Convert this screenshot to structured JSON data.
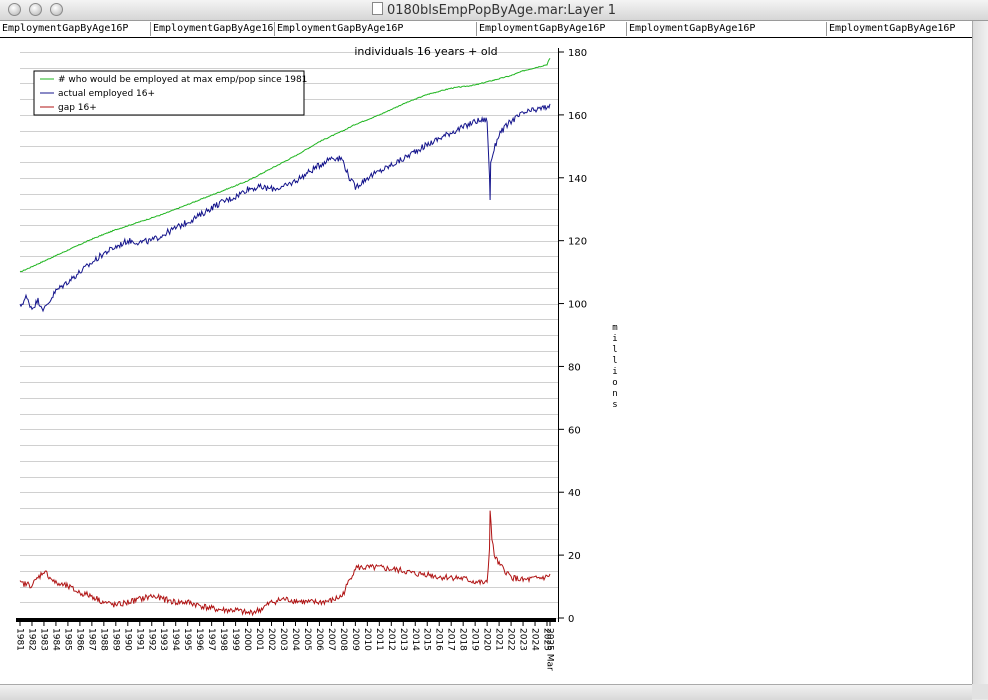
{
  "window": {
    "title": "0180blsEmpPopByAge.mar:Layer 1"
  },
  "headers": [
    "EmploymentGapByAge16P",
    "EmploymentGapByAge16",
    "EmploymentGapByAge16P",
    "EmploymentGapByAge16P",
    "EmploymentGapByAge16P",
    "EmploymentGapByAge16P"
  ],
  "chart_data": {
    "type": "line",
    "title": "individuals 16 years + old",
    "ylabel": "millions",
    "ylim": [
      0,
      180
    ],
    "yticks": [
      0,
      20,
      40,
      60,
      80,
      100,
      120,
      140,
      160,
      180
    ],
    "y_axis_side": "right",
    "grid": true,
    "legend_position": "top-left",
    "x_range": [
      1981.0,
      2025.25
    ],
    "xticks": [
      "1981",
      "1982",
      "1983",
      "1984",
      "1985",
      "1986",
      "1987",
      "1988",
      "1989",
      "1990",
      "1991",
      "1992",
      "1993",
      "1994",
      "1995",
      "1996",
      "1997",
      "1998",
      "1999",
      "2000",
      "2001",
      "2002",
      "2003",
      "2004",
      "2005",
      "2006",
      "2007",
      "2008",
      "2009",
      "2010",
      "2011",
      "2012",
      "2013",
      "2014",
      "2015",
      "2016",
      "2017",
      "2018",
      "2019",
      "2020",
      "2021",
      "2022",
      "2023",
      "2024",
      "2025",
      "2025 Mar"
    ],
    "series": [
      {
        "name": "# who would be employed at max emp/pop since 1981",
        "color": "#1fb51f",
        "x": [
          1981,
          1983,
          1985,
          1987,
          1989,
          1991,
          1993,
          1995,
          1997,
          1999,
          2000,
          2002,
          2004,
          2006,
          2008,
          2009,
          2011,
          2013,
          2015,
          2017,
          2019,
          2020,
          2021,
          2022,
          2023,
          2024,
          2025,
          2025.1,
          2025.25
        ],
        "y": [
          110,
          113.5,
          117,
          120.5,
          123.5,
          126,
          128.5,
          131.5,
          134.5,
          137.5,
          139,
          143,
          147,
          151.5,
          155,
          157,
          160,
          163.5,
          166.5,
          168.5,
          169.5,
          170.5,
          171.5,
          172.5,
          174,
          175,
          176,
          177,
          178
        ]
      },
      {
        "name": "actual employed 16+",
        "color": "#14148c",
        "x": [
          1981,
          1981.5,
          1982,
          1982.5,
          1983,
          1983.5,
          1984,
          1985,
          1986,
          1987,
          1988,
          1989,
          1990,
          1991,
          1992,
          1993,
          1994,
          1995,
          1996,
          1997,
          1998,
          1999,
          2000,
          2001,
          2002,
          2003,
          2004,
          2005,
          2006,
          2007,
          2007.9,
          2008.5,
          2009,
          2009.5,
          2010,
          2011,
          2012,
          2013,
          2014,
          2015,
          2016,
          2017,
          2018,
          2019,
          2020,
          2020.2,
          2020.25,
          2020.3,
          2020.5,
          2021,
          2022,
          2023,
          2024,
          2025,
          2025.25
        ],
        "y": [
          99,
          102,
          98.5,
          101,
          98,
          101,
          104,
          107,
          110,
          113,
          116,
          118,
          120,
          119.5,
          120,
          122,
          124,
          126,
          128,
          130.5,
          132.5,
          134,
          136.5,
          137,
          136.5,
          137,
          139,
          141.5,
          144,
          146.5,
          146,
          140,
          137,
          138.5,
          140,
          142,
          144,
          146,
          148.5,
          150.5,
          152.5,
          154.5,
          156,
          158,
          158.5,
          140,
          133,
          145,
          148,
          154,
          158,
          160.5,
          161.5,
          162.5,
          163.5
        ]
      },
      {
        "name": "gap 16+",
        "color": "#b01414",
        "x": [
          1981,
          1982,
          1983,
          1983.5,
          1984,
          1985,
          1986,
          1987,
          1988,
          1989,
          1990,
          1991,
          1992,
          1993,
          1994,
          1995,
          1996,
          1997,
          1998,
          1999,
          2000,
          2001,
          2002,
          2003,
          2004,
          2005,
          2006,
          2007,
          2007.9,
          2008.5,
          2009,
          2010,
          2011,
          2012,
          2013,
          2014,
          2015,
          2016,
          2017,
          2018,
          2019,
          2020,
          2020.2,
          2020.25,
          2020.4,
          2020.6,
          2021,
          2022,
          2023,
          2024,
          2025,
          2025.25
        ],
        "y": [
          11,
          10.5,
          15,
          13,
          11,
          10,
          8,
          7,
          5,
          4,
          5,
          6,
          7,
          6,
          5,
          5,
          4,
          3,
          2.5,
          2.5,
          1.5,
          2.5,
          5,
          6,
          5.5,
          5,
          5,
          5.5,
          7,
          12,
          16,
          16,
          16,
          15.5,
          15,
          14,
          14,
          13,
          13,
          12.5,
          11.5,
          11,
          22,
          35,
          25,
          20,
          17,
          13,
          12,
          12.5,
          13,
          14
        ]
      }
    ]
  }
}
